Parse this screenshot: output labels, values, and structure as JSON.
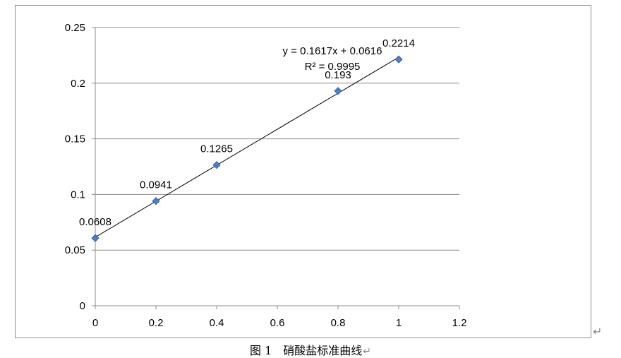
{
  "chart_data": {
    "type": "scatter",
    "x": [
      0,
      0.2,
      0.4,
      0.8,
      1
    ],
    "y": [
      0.0608,
      0.0941,
      0.1265,
      0.193,
      0.2214
    ],
    "point_labels": [
      "0.0608",
      "0.0941",
      "0.1265",
      "0.193",
      "0.2214"
    ],
    "xlim": [
      0,
      1.2
    ],
    "ylim": [
      0,
      0.25
    ],
    "x_ticks": [
      0,
      0.2,
      0.4,
      0.6,
      0.8,
      1,
      1.2
    ],
    "x_tick_labels": [
      "0",
      "0.2",
      "0.4",
      "0.6",
      "0.8",
      "1",
      "1.2"
    ],
    "y_ticks": [
      0,
      0.05,
      0.1,
      0.15,
      0.2,
      0.25
    ],
    "y_tick_labels": [
      "0",
      "0.05",
      "0.1",
      "0.15",
      "0.2",
      "0.25"
    ],
    "grid": "horizontal",
    "trendline": {
      "slope": 0.1617,
      "intercept": 0.0616,
      "equation": "y = 0.1617x + 0.0616",
      "r_squared": "R² = 0.9995"
    },
    "marker_color": "#4F81BD",
    "marker_edge_color": "#2F5597",
    "line_color": "#000000",
    "grid_color": "#8C8C8C"
  },
  "caption": {
    "text": "图 1　硝酸盐标准曲线",
    "paragraph_mark": "↵"
  },
  "edge_mark": "↵"
}
